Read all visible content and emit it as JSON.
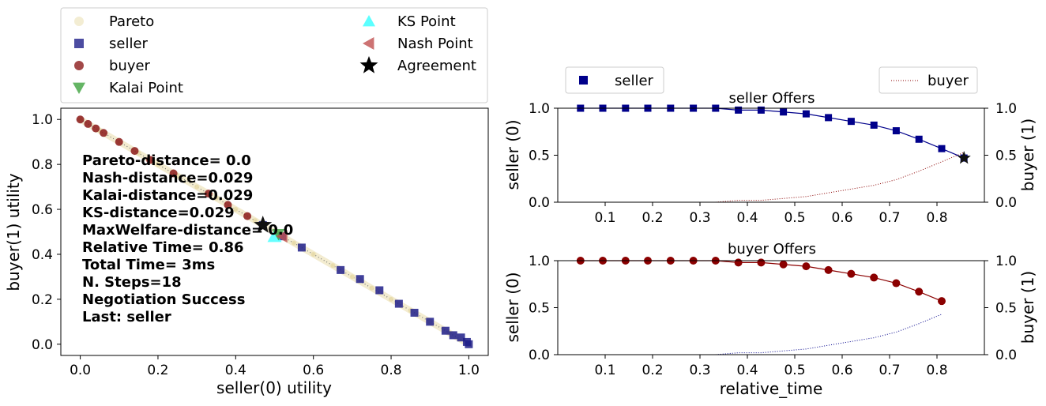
{
  "chart_data": [
    {
      "type": "scatter",
      "id": "utility",
      "xlabel": "seller(0) utility",
      "ylabel": "buyer(1) utility",
      "xlim": [
        -0.05,
        1.05
      ],
      "ylim": [
        -0.05,
        1.05
      ],
      "xticks": [
        0.0,
        0.2,
        0.4,
        0.6,
        0.8,
        1.0
      ],
      "yticks": [
        0.0,
        0.2,
        0.4,
        0.6,
        0.8,
        1.0
      ],
      "tick_labels": [
        "0.0",
        "0.2",
        "0.4",
        "0.6",
        "0.8",
        "1.0"
      ],
      "legend": [
        {
          "label": "Pareto",
          "marker": "circle",
          "color": "#f0e8c8"
        },
        {
          "label": "seller",
          "marker": "square",
          "color": "#1f1f8a"
        },
        {
          "label": "buyer",
          "marker": "circle",
          "color": "#8b1a1a"
        },
        {
          "label": "Kalai Point",
          "marker": "triangle-down",
          "color": "#3fa33f"
        },
        {
          "label": "KS Point",
          "marker": "triangle-up",
          "color": "#33ffff"
        },
        {
          "label": "Nash Point",
          "marker": "triangle-left",
          "color": "#c05050"
        },
        {
          "label": "Agreement",
          "marker": "star",
          "color": "#000000"
        }
      ],
      "legend_position": "above",
      "series": [
        {
          "name": "Pareto",
          "x": [
            0.0,
            0.05,
            0.1,
            0.15,
            0.2,
            0.25,
            0.3,
            0.35,
            0.4,
            0.45,
            0.5,
            0.55,
            0.6,
            0.65,
            0.7,
            0.75,
            0.8,
            0.85,
            0.9,
            0.95,
            1.0
          ],
          "y": [
            1.0,
            0.95,
            0.9,
            0.85,
            0.8,
            0.75,
            0.7,
            0.65,
            0.6,
            0.55,
            0.5,
            0.45,
            0.4,
            0.35,
            0.3,
            0.25,
            0.2,
            0.15,
            0.1,
            0.05,
            0.0
          ]
        },
        {
          "name": "seller",
          "x": [
            1.0,
            0.995,
            0.98,
            0.96,
            0.94,
            0.9,
            0.86,
            0.82,
            0.77,
            0.72,
            0.67,
            0.57,
            0.52,
            0.47
          ],
          "y": [
            0.0,
            0.01,
            0.03,
            0.04,
            0.06,
            0.1,
            0.14,
            0.18,
            0.24,
            0.29,
            0.33,
            0.43,
            0.48,
            0.53
          ]
        },
        {
          "name": "buyer",
          "x": [
            0.0,
            0.02,
            0.04,
            0.06,
            0.1,
            0.14,
            0.18,
            0.24,
            0.33,
            0.38,
            0.43
          ],
          "y": [
            1.0,
            0.98,
            0.96,
            0.94,
            0.9,
            0.86,
            0.82,
            0.76,
            0.67,
            0.62,
            0.57
          ]
        }
      ],
      "kalai_point": [
        0.51,
        0.49
      ],
      "ks_point": [
        0.5,
        0.48
      ],
      "nash_point": [
        0.52,
        0.48
      ],
      "agreement": [
        0.47,
        0.53
      ],
      "annotation": [
        "Pareto-distance=  0.0",
        "Nash-distance=0.029",
        "Kalai-distance=0.029",
        "KS-distance=0.029",
        "MaxWelfare-distance=  0.0",
        "Relative Time= 0.86",
        "Total Time= 3ms",
        "N. Steps=18",
        "Negotiation Success",
        "Last: seller"
      ]
    },
    {
      "type": "line",
      "id": "seller-offers",
      "title": "seller Offers",
      "ylabel_left": "seller (0)",
      "ylabel_right": "buyer (1)",
      "xlim": [
        0.0,
        0.9
      ],
      "ylim": [
        0.0,
        1.0
      ],
      "xticks": [
        0.1,
        0.2,
        0.3,
        0.4,
        0.5,
        0.6,
        0.7,
        0.8
      ],
      "xtick_labels": [
        "0.1",
        "0.2",
        "0.3",
        "0.4",
        "0.5",
        "0.6",
        "0.7",
        "0.8"
      ],
      "yticks": [
        0.0,
        0.5,
        1.0
      ],
      "ytick_labels": [
        "0.0",
        "0.5",
        "1.0"
      ],
      "legend_left": "seller",
      "legend_right": "buyer",
      "main_color": "#00008b",
      "other_color": "#8b0000",
      "x": [
        0.048,
        0.095,
        0.143,
        0.19,
        0.238,
        0.286,
        0.333,
        0.381,
        0.429,
        0.476,
        0.524,
        0.571,
        0.619,
        0.667,
        0.714,
        0.762,
        0.81,
        0.857
      ],
      "main_values": [
        1.0,
        1.0,
        1.0,
        1.0,
        1.0,
        1.0,
        1.0,
        0.98,
        0.98,
        0.96,
        0.94,
        0.9,
        0.86,
        0.82,
        0.76,
        0.67,
        0.57,
        0.47
      ],
      "other_values": [
        0.0,
        0.0,
        0.0,
        0.0,
        0.0,
        0.0,
        0.0,
        0.02,
        0.02,
        0.04,
        0.06,
        0.1,
        0.14,
        0.18,
        0.24,
        0.33,
        0.43,
        0.53
      ],
      "agreement": [
        0.857,
        0.47
      ]
    },
    {
      "type": "line",
      "id": "buyer-offers",
      "title": "buyer Offers",
      "xlabel": "relative_time",
      "ylabel_left": "seller (0)",
      "ylabel_right": "buyer (1)",
      "xlim": [
        0.0,
        0.9
      ],
      "ylim": [
        0.0,
        1.0
      ],
      "xticks": [
        0.1,
        0.2,
        0.3,
        0.4,
        0.5,
        0.6,
        0.7,
        0.8
      ],
      "xtick_labels": [
        "0.1",
        "0.2",
        "0.3",
        "0.4",
        "0.5",
        "0.6",
        "0.7",
        "0.8"
      ],
      "yticks": [
        0.0,
        0.5,
        1.0
      ],
      "ytick_labels": [
        "0.0",
        "0.5",
        "1.0"
      ],
      "main_color": "#8b0000",
      "other_color": "#00008b",
      "x": [
        0.048,
        0.095,
        0.143,
        0.19,
        0.238,
        0.286,
        0.333,
        0.381,
        0.429,
        0.476,
        0.524,
        0.571,
        0.619,
        0.667,
        0.714,
        0.762,
        0.81
      ],
      "main_values": [
        1.0,
        1.0,
        1.0,
        1.0,
        1.0,
        1.0,
        1.0,
        0.98,
        0.98,
        0.96,
        0.94,
        0.9,
        0.86,
        0.82,
        0.76,
        0.67,
        0.57
      ],
      "other_values": [
        0.0,
        0.0,
        0.0,
        0.0,
        0.0,
        0.0,
        0.0,
        0.02,
        0.02,
        0.04,
        0.06,
        0.1,
        0.14,
        0.18,
        0.24,
        0.33,
        0.43
      ]
    }
  ]
}
